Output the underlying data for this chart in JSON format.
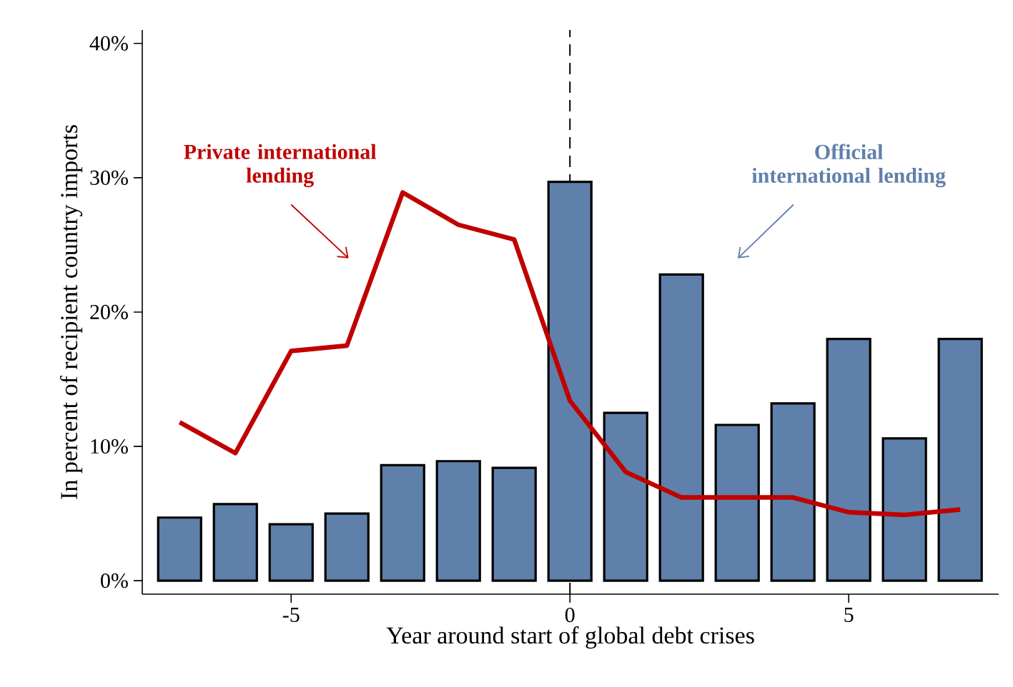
{
  "chart_data": {
    "type": "bar",
    "xlabel": "Year around start of global debt crises",
    "ylabel": "In percent of recipient country imports",
    "x": [
      -7,
      -6,
      -5,
      -4,
      -3,
      -2,
      -1,
      0,
      1,
      2,
      3,
      4,
      5,
      6,
      7
    ],
    "series": [
      {
        "name": "Official international lending",
        "color": "#5f80aa",
        "values": [
          4.7,
          5.7,
          4.2,
          5.0,
          8.6,
          8.9,
          8.4,
          29.7,
          12.5,
          22.8,
          11.6,
          13.2,
          18.0,
          10.6,
          18.0
        ]
      },
      {
        "name": "Private international lending",
        "type": "line",
        "color": "#c00000",
        "values": [
          11.8,
          9.5,
          17.1,
          17.5,
          28.9,
          26.5,
          25.4,
          13.4,
          8.1,
          6.2,
          6.2,
          6.2,
          5.1,
          4.9,
          5.3
        ]
      }
    ],
    "xlim": [
      -7.67,
      7.69
    ],
    "ylim": [
      -1,
      41
    ],
    "xticks": [
      -5,
      0,
      5
    ],
    "yticks": [
      {
        "value": 0,
        "label": "0%"
      },
      {
        "value": 10,
        "label": "10%"
      },
      {
        "value": 20,
        "label": "20%"
      },
      {
        "value": 30,
        "label": "30%"
      },
      {
        "value": 40,
        "label": "40%"
      }
    ],
    "ref_lines": [
      {
        "axis": "x",
        "value": 0,
        "color": "#000000",
        "line_style": "dashed"
      }
    ],
    "grid": false,
    "legend": false,
    "marker": "none",
    "line_style": "solid"
  }
}
